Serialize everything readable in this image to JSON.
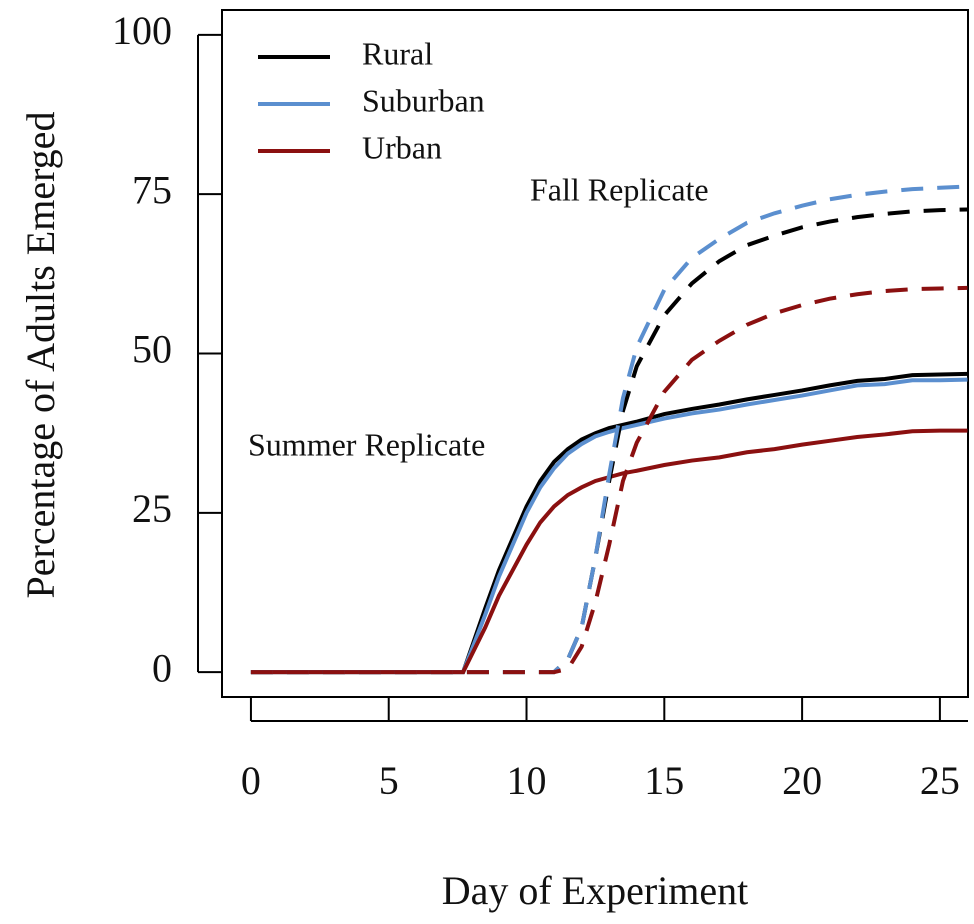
{
  "chart_data": {
    "type": "line",
    "x_label": "Day of Experiment",
    "y_label": "Percentage of Adults Emerged",
    "annotations": [
      "Fall Replicate",
      "Summer Replicate"
    ],
    "xlim": [
      -1.05,
      26.02
    ],
    "ylim": [
      -3.9,
      103.9
    ],
    "xticks": [
      0,
      5,
      10,
      15,
      20,
      25
    ],
    "yticks": [
      0,
      25,
      50,
      75,
      100
    ],
    "grid": false,
    "x": [
      0,
      2,
      4,
      6,
      7.7,
      8.5,
      9,
      9.5,
      10,
      10.5,
      11,
      11.5,
      12,
      12.5,
      13,
      13.5,
      14,
      15,
      16,
      17,
      18,
      19,
      20,
      21,
      22,
      23,
      24,
      25,
      26
    ],
    "series": [
      {
        "name": "Rural",
        "color": "#000000",
        "summer": [
          0,
          0,
          0,
          0,
          0,
          10,
          16,
          21,
          26,
          30,
          33,
          35,
          36.5,
          37.5,
          38.3,
          38.8,
          39.3,
          40.5,
          41.3,
          42,
          42.8,
          43.5,
          44.2,
          45,
          45.7,
          46,
          46.6,
          46.7,
          46.8
        ],
        "fall": [
          0,
          0,
          0,
          0,
          0,
          0,
          0,
          0,
          0,
          0,
          0,
          2,
          7,
          18,
          30,
          41,
          48,
          56,
          61,
          64.5,
          67,
          68.5,
          69.8,
          70.7,
          71.4,
          71.9,
          72.3,
          72.5,
          72.6
        ]
      },
      {
        "name": "Suburban",
        "color": "#5b8fcf",
        "summer": [
          0,
          0,
          0,
          0,
          0,
          9,
          15,
          20,
          25,
          29,
          32,
          34.3,
          35.8,
          37,
          37.7,
          38.3,
          38.8,
          39.8,
          40.6,
          41.2,
          42,
          42.7,
          43.4,
          44.2,
          45,
          45.2,
          45.8,
          45.8,
          45.9
        ],
        "fall": [
          0,
          0,
          0,
          0,
          0,
          0,
          0,
          0,
          0,
          0,
          0,
          2,
          7,
          18,
          31,
          43,
          51,
          60,
          65,
          68,
          70.5,
          72,
          73.2,
          74.2,
          74.9,
          75.4,
          75.8,
          76,
          76.2
        ]
      },
      {
        "name": "Urban",
        "color": "#8b1010",
        "summer": [
          0,
          0,
          0,
          0,
          0,
          7,
          12,
          16,
          20,
          23.5,
          26,
          27.8,
          29,
          30,
          30.6,
          31.2,
          31.6,
          32.5,
          33.2,
          33.7,
          34.5,
          35,
          35.7,
          36.3,
          36.9,
          37.3,
          37.8,
          37.9,
          37.9
        ],
        "fall": [
          0,
          0,
          0,
          0,
          0,
          0,
          0,
          0,
          0,
          0,
          0,
          0.5,
          4,
          11,
          20,
          30,
          36,
          44,
          49,
          52,
          54.5,
          56.3,
          57.6,
          58.6,
          59.3,
          59.8,
          60.1,
          60.2,
          60.3
        ]
      }
    ]
  }
}
